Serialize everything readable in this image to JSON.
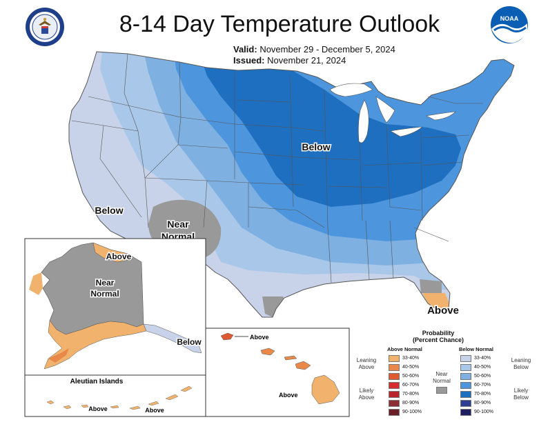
{
  "title": "8-14 Day Temperature Outlook",
  "valid_label": "Valid:",
  "valid_range": "November 29 - December 5, 2024",
  "issued_label": "Issued:",
  "issued_date": "November 21, 2024",
  "logos": {
    "left": "dept-commerce-seal",
    "right": "noaa-logo",
    "noaa_text": "NOAA"
  },
  "map_labels": {
    "conus_below_east": "Below",
    "conus_below_west": "Below",
    "conus_near_normal_1": "Near",
    "conus_near_normal_2": "Normal",
    "florida_above": "Above",
    "alaska_above_north": "Above",
    "alaska_near_normal_1": "Near",
    "alaska_near_normal_2": "Normal",
    "alaska_below": "Below",
    "aleutian_title": "Aleutian Islands",
    "aleutian_above_1": "Above",
    "aleutian_above_2": "Above",
    "hawaii_above_1": "Above",
    "hawaii_above_2": "Above"
  },
  "colors": {
    "above": [
      "#f0b26c",
      "#e8894a",
      "#dd5a33",
      "#d52d2d",
      "#b8262c",
      "#8e2c35",
      "#6a1f26"
    ],
    "below": [
      "#c8d3ea",
      "#a9c7e8",
      "#7fb0e2",
      "#4d95dc",
      "#1e6fbf",
      "#2e3f92",
      "#1c1e5e"
    ],
    "near_normal": "#999999",
    "state_lines": "#555555"
  },
  "legend": {
    "title_1": "Probability",
    "title_2": "(Percent Chance)",
    "above_header": "Above Normal",
    "below_header": "Below Normal",
    "above_items": [
      "33-40%",
      "40-50%",
      "50-60%",
      "60-70%",
      "70-80%",
      "80-90%",
      "90-100%"
    ],
    "below_items": [
      "33-40%",
      "40-50%",
      "50-60%",
      "60-70%",
      "70-80%",
      "80-90%",
      "90-100%"
    ],
    "leaning_above_1": "Leaning",
    "leaning_above_2": "Above",
    "likely_above_1": "Likely",
    "likely_above_2": "Above",
    "leaning_below_1": "Leaning",
    "leaning_below_2": "Below",
    "likely_below_1": "Likely",
    "likely_below_2": "Below",
    "near_normal_1": "Near",
    "near_normal_2": "Normal"
  }
}
